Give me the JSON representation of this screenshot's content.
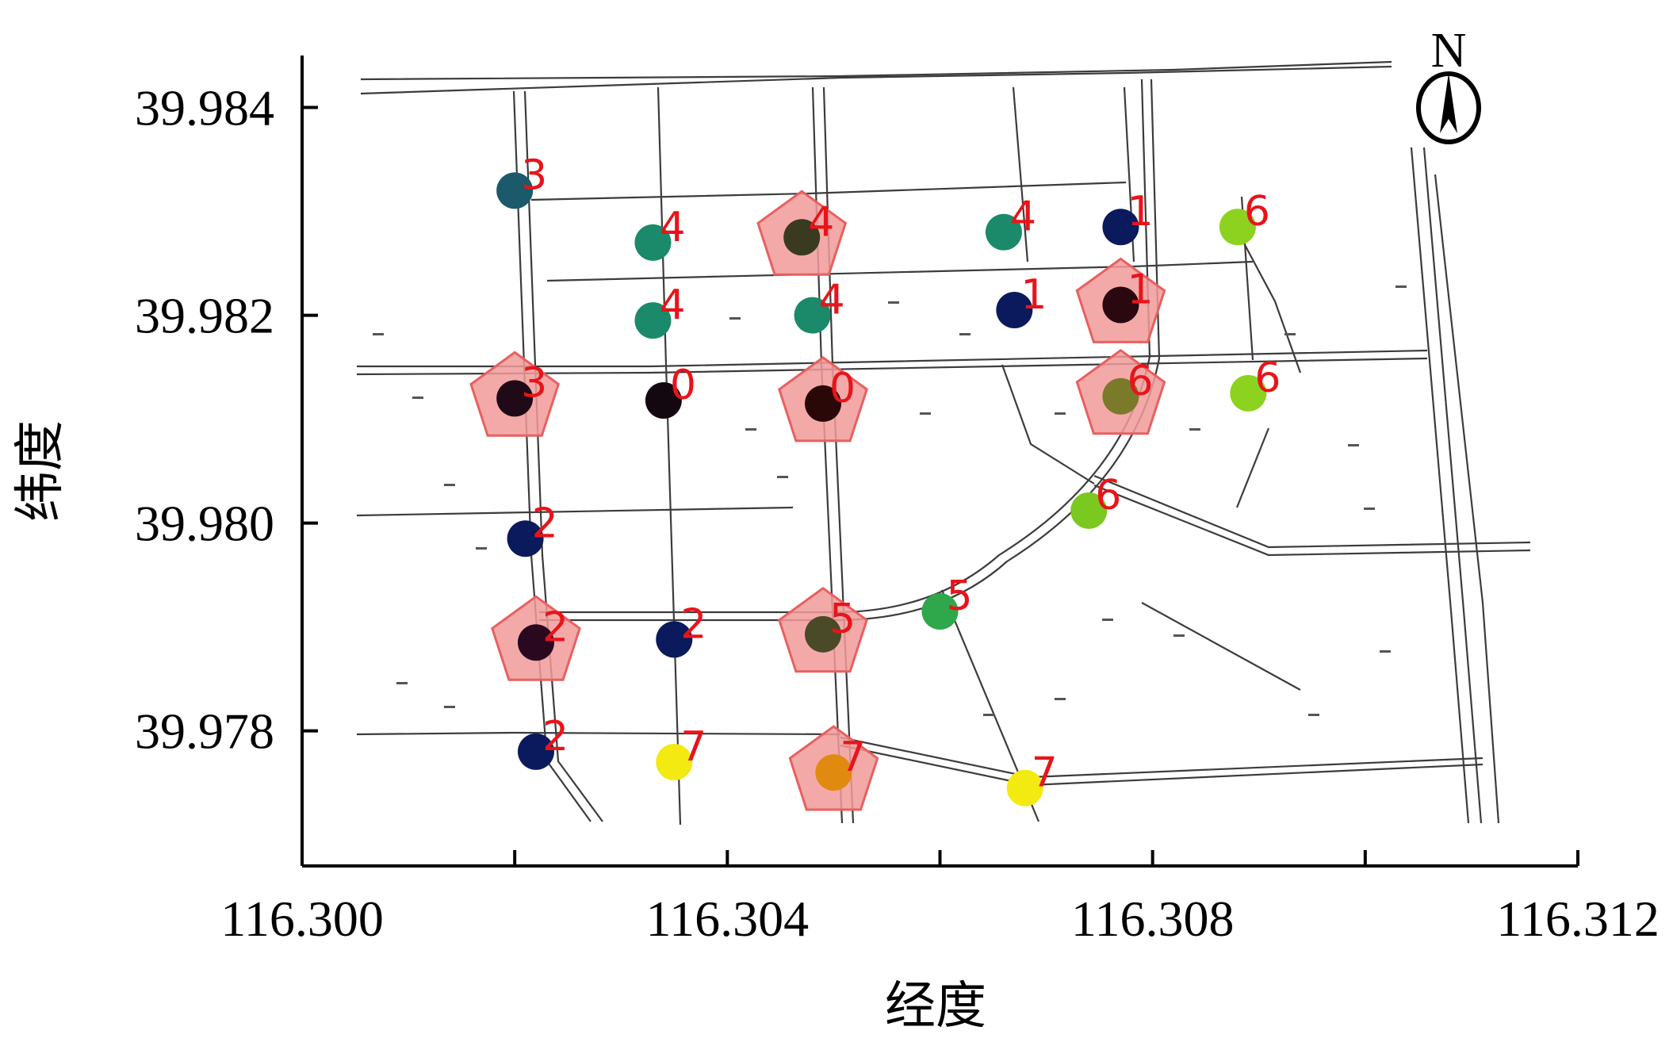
{
  "chart_data": {
    "type": "scatter",
    "title": "",
    "xlabel": "经度",
    "ylabel": "纬度",
    "xlim": [
      116.3,
      116.312
    ],
    "ylim": [
      39.9767,
      39.9845
    ],
    "x_ticks": [
      116.3,
      116.302,
      116.304,
      116.306,
      116.308,
      116.31,
      116.312
    ],
    "x_tick_labels": [
      "116.300",
      "",
      "116.304",
      "",
      "116.308",
      "",
      "116.312"
    ],
    "y_ticks": [
      39.978,
      39.98,
      39.982,
      39.984
    ],
    "y_tick_labels": [
      "39.978",
      "39.980",
      "39.982",
      "39.984"
    ],
    "grid": false,
    "north_arrow": {
      "letter": "N",
      "placement": "top-right"
    },
    "background": "street-map",
    "marker_colors": {
      "navy": "#0a1a5c",
      "teal_dark": "#1a5a6a",
      "teal": "#1a8a6a",
      "green": "#2ea84a",
      "lime": "#8cd21e",
      "yellow": "#f2ea10",
      "dark_red": "#2a0810",
      "near_black": "#140810",
      "olive": "#5a5a2a",
      "olive_gold": "#7a7a2a",
      "orange": "#e08a10",
      "pentagon_fill": "#f29a9a",
      "pentagon_stroke": "#e86060",
      "label": "#e8141a"
    },
    "points": [
      {
        "x": 116.302,
        "y": 39.9832,
        "label": "3",
        "color": "#1a5a6a",
        "highlight": false
      },
      {
        "x": 116.3033,
        "y": 39.9827,
        "label": "4",
        "color": "#1a8a6a",
        "highlight": false
      },
      {
        "x": 116.3047,
        "y": 39.98275,
        "label": "4",
        "color": "#3a3a20",
        "highlight": true
      },
      {
        "x": 116.3066,
        "y": 39.9828,
        "label": "4",
        "color": "#1a8a6a",
        "highlight": false
      },
      {
        "x": 116.3077,
        "y": 39.98285,
        "label": "1",
        "color": "#0a1a5c",
        "highlight": false
      },
      {
        "x": 116.3088,
        "y": 39.98285,
        "label": "6",
        "color": "#8cd21e",
        "highlight": false
      },
      {
        "x": 116.3033,
        "y": 39.98195,
        "label": "4",
        "color": "#1a8a6a",
        "highlight": false
      },
      {
        "x": 116.3048,
        "y": 39.982,
        "label": "4",
        "color": "#1a8a6a",
        "highlight": false
      },
      {
        "x": 116.3067,
        "y": 39.98205,
        "label": "1",
        "color": "#0a1a5c",
        "highlight": false
      },
      {
        "x": 116.3077,
        "y": 39.9821,
        "label": "1",
        "color": "#2a0810",
        "highlight": true
      },
      {
        "x": 116.302,
        "y": 39.9812,
        "label": "3",
        "color": "#200a18",
        "highlight": true
      },
      {
        "x": 116.3034,
        "y": 39.98118,
        "label": "0",
        "color": "#140810",
        "highlight": false
      },
      {
        "x": 116.3049,
        "y": 39.98115,
        "label": "0",
        "color": "#2a0808",
        "highlight": true
      },
      {
        "x": 116.3077,
        "y": 39.98122,
        "label": "6",
        "color": "#7a7a2a",
        "highlight": true
      },
      {
        "x": 116.3089,
        "y": 39.98125,
        "label": "6",
        "color": "#8cd21e",
        "highlight": false
      },
      {
        "x": 116.3074,
        "y": 39.98012,
        "label": "6",
        "color": "#7ac820",
        "highlight": false
      },
      {
        "x": 116.3021,
        "y": 39.97985,
        "label": "2",
        "color": "#0a1a5c",
        "highlight": false
      },
      {
        "x": 116.306,
        "y": 39.97915,
        "label": "5",
        "color": "#2ea84a",
        "highlight": false
      },
      {
        "x": 116.3022,
        "y": 39.97885,
        "label": "2",
        "color": "#2a0820",
        "highlight": true
      },
      {
        "x": 116.3035,
        "y": 39.97888,
        "label": "2",
        "color": "#0a1a5c",
        "highlight": false
      },
      {
        "x": 116.3049,
        "y": 39.97893,
        "label": "5",
        "color": "#4a4a28",
        "highlight": true
      },
      {
        "x": 116.3022,
        "y": 39.9778,
        "label": "2",
        "color": "#0a1a5c",
        "highlight": false
      },
      {
        "x": 116.3035,
        "y": 39.9777,
        "label": "7",
        "color": "#f2ea10",
        "highlight": false
      },
      {
        "x": 116.305,
        "y": 39.9776,
        "label": "7",
        "color": "#e08a10",
        "highlight": true
      },
      {
        "x": 116.3068,
        "y": 39.97745,
        "label": "7",
        "color": "#f2ea10",
        "highlight": false
      }
    ]
  }
}
